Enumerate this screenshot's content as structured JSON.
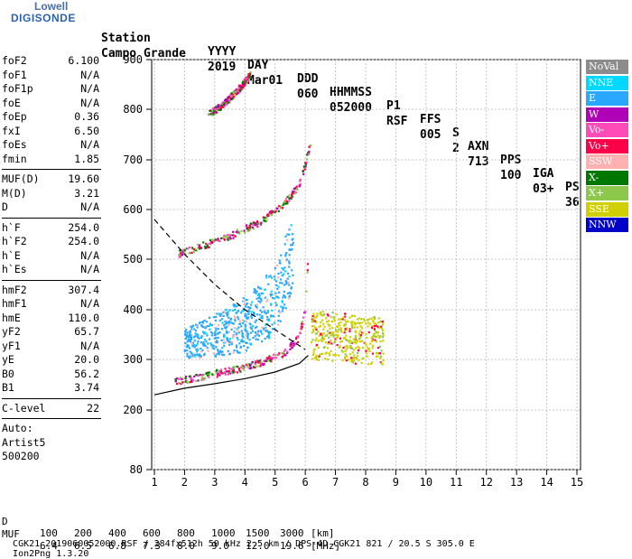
{
  "logo": {
    "brand": "Lowell",
    "product": "DIGISONDE"
  },
  "header": {
    "row1": [
      "Station",
      "YYYY",
      "DAY",
      "DDD",
      "HHMMSS",
      "P1",
      "FFS",
      "S",
      "AXN",
      "PPS",
      "IGA",
      "PS"
    ],
    "station": "Campo Grande",
    "year": "2019",
    "day": "Mar01",
    "ddd": "060",
    "time": "052000",
    "p1": "RSF",
    "ffs": "005",
    "s": "2",
    "axn": "713",
    "pps": "100",
    "iga": "03+",
    "ps": "36"
  },
  "params_group1": [
    {
      "name": "foF2",
      "value": "6.100"
    },
    {
      "name": "foF1",
      "value": "N/A"
    },
    {
      "name": "foF1p",
      "value": "N/A"
    },
    {
      "name": "foE",
      "value": "N/A"
    },
    {
      "name": "foEp",
      "value": "0.36"
    },
    {
      "name": "fxI",
      "value": "6.50"
    },
    {
      "name": "foEs",
      "value": "N/A"
    },
    {
      "name": "fmin",
      "value": "1.85"
    }
  ],
  "params_group2": [
    {
      "name": "MUF(D)",
      "value": "19.60"
    },
    {
      "name": "M(D)",
      "value": "3.21"
    },
    {
      "name": "D",
      "value": "N/A"
    }
  ],
  "params_group3": [
    {
      "name": "h`F",
      "value": "254.0"
    },
    {
      "name": "h`F2",
      "value": "254.0"
    },
    {
      "name": "h`E",
      "value": "N/A"
    },
    {
      "name": "h`Es",
      "value": "N/A"
    }
  ],
  "params_group4": [
    {
      "name": "hmF2",
      "value": "307.4"
    },
    {
      "name": "hmF1",
      "value": "N/A"
    },
    {
      "name": "hmE",
      "value": "110.0"
    },
    {
      "name": "yF2",
      "value": "65.7"
    },
    {
      "name": "yF1",
      "value": "N/A"
    },
    {
      "name": "yE",
      "value": "20.0"
    },
    {
      "name": "B0",
      "value": "56.2"
    },
    {
      "name": "B1",
      "value": "3.74"
    }
  ],
  "params_group5": [
    {
      "name": "C-level",
      "value": "22"
    }
  ],
  "auto": {
    "line1": "Auto:",
    "line2": "Artist5",
    "line3": "500200"
  },
  "legend": [
    {
      "label": "NoVal",
      "color": "#8c8c8c"
    },
    {
      "label": "NNE",
      "color": "#00d8ff"
    },
    {
      "label": "E",
      "color": "#2aa8ff"
    },
    {
      "label": "W",
      "color": "#b000b8"
    },
    {
      "label": "Vo-",
      "color": "#ff4bb8"
    },
    {
      "label": "Vo+",
      "color": "#ff0048"
    },
    {
      "label": "SSW",
      "color": "#ffb0b0"
    },
    {
      "label": "X-",
      "color": "#007800"
    },
    {
      "label": "X+",
      "color": "#8cc84c"
    },
    {
      "label": "SSE",
      "color": "#d0d000"
    },
    {
      "label": "NNW",
      "color": "#0000c8"
    }
  ],
  "footer": {
    "d_label": "D",
    "d_values": [
      "100",
      "200",
      "400",
      "600",
      "800",
      "1000",
      "1500",
      "3000"
    ],
    "d_unit": "[km]",
    "muf_label": "MUF",
    "muf_values": [
      "6.4",
      "6.5",
      "6.8",
      "7.3",
      "8.0",
      "9.0",
      "12.0",
      "19.6"
    ],
    "muf_unit": "[MHz]",
    "file_line": "CGK21_2019060052000.RSF / 284fx512h 50 kHz 2.5 km / DPS-4D CGK21 821 / 20.5 S 305.0 E",
    "version": "Ion2Png 1.3.20"
  },
  "chart_data": {
    "type": "scatter",
    "x_ticks": [
      "1",
      "2",
      "3",
      "4",
      "5",
      "6",
      "7",
      "8",
      "9",
      "10",
      "11",
      "12",
      "13",
      "14",
      "15"
    ],
    "y_ticks": [
      "80",
      "200",
      "300",
      "400",
      "500",
      "600",
      "700",
      "800",
      "900"
    ],
    "xlim": [
      1,
      15
    ],
    "ylim": [
      80,
      900
    ],
    "grid": true,
    "legend_position": "right",
    "traces": [
      {
        "name": "Vo+",
        "x": [
          1.7,
          2.5,
          3.5,
          4.5,
          5.3,
          5.8,
          6.0,
          6.1
        ],
        "y": [
          255,
          265,
          278,
          292,
          312,
          345,
          400,
          510
        ]
      },
      {
        "name": "Vo+",
        "x": [
          1.8,
          2.5,
          3.5,
          4.5,
          5.3,
          5.8,
          6.0,
          6.2
        ],
        "y": [
          510,
          525,
          545,
          575,
          610,
          650,
          690,
          740
        ]
      },
      {
        "name": "Vo+",
        "x": [
          2.8,
          3.3,
          3.8,
          4.2
        ],
        "y": [
          790,
          810,
          840,
          870
        ]
      },
      {
        "name": "E",
        "x": [
          2.0,
          3.0,
          4.0,
          5.0,
          5.6
        ],
        "y": [
          330,
          335,
          345,
          380,
          470
        ]
      },
      {
        "name": "SSE",
        "x": [
          6.5,
          7.5,
          8.5
        ],
        "y": [
          370,
          365,
          360
        ]
      }
    ],
    "profile_solid": {
      "x": [
        1.0,
        2.0,
        3.0,
        4.0,
        5.0,
        5.8,
        6.1
      ],
      "y": [
        230,
        243,
        252,
        262,
        275,
        292,
        308
      ]
    },
    "profile_dashed": {
      "x": [
        1.0,
        2.0,
        3.0,
        4.0,
        5.0,
        6.0
      ],
      "y": [
        580,
        510,
        450,
        400,
        360,
        320
      ]
    }
  }
}
